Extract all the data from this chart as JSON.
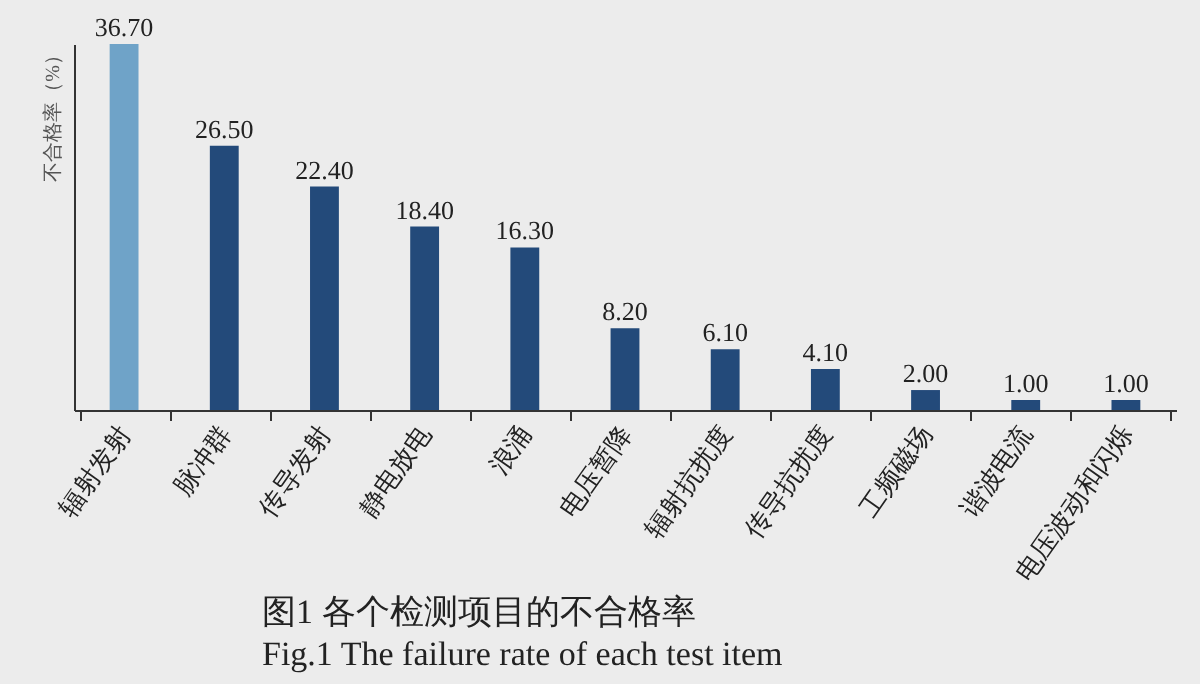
{
  "chart_data": {
    "type": "bar",
    "title": "图1  各个检测项目的不合格率",
    "subtitle": "Fig.1  The failure rate of each test item",
    "ylabel": "不合格率（%）",
    "categories": [
      "辐射发射",
      "脉冲群",
      "传导发射",
      "静电放电",
      "浪涌",
      "电压暂降",
      "辐射抗扰度",
      "传导抗扰度",
      "工频磁场",
      "谐波电流",
      "电压波动和闪烁"
    ],
    "values": [
      36.7,
      26.5,
      22.4,
      18.4,
      16.3,
      8.2,
      6.1,
      4.1,
      2.0,
      1.0,
      1.0
    ],
    "colors": [
      "#6fa3c8",
      "#234a7a",
      "#234a7a",
      "#234a7a",
      "#234a7a",
      "#234a7a",
      "#234a7a",
      "#234a7a",
      "#234a7a",
      "#234a7a",
      "#234a7a"
    ],
    "value_labels": [
      "36.70",
      "26.50",
      "22.40",
      "18.40",
      "16.30",
      "8.20",
      "6.10",
      "4.10",
      "2.00",
      "1.00",
      "1.00"
    ]
  }
}
